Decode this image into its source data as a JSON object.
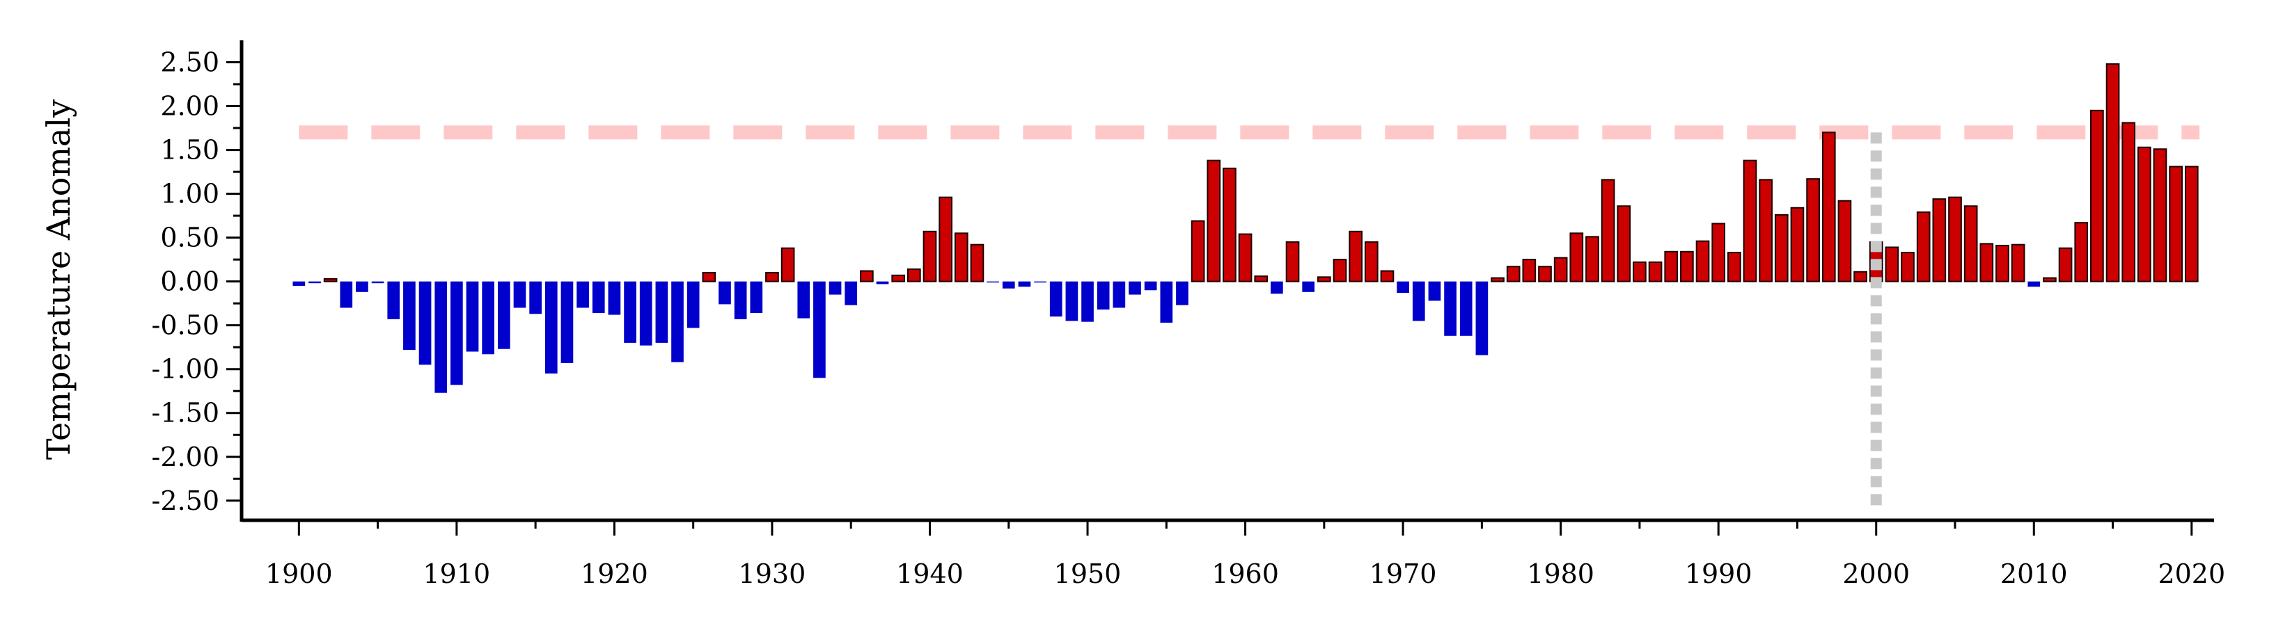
{
  "chart_data": {
    "type": "bar",
    "ylabel": "Temperature Anomaly",
    "xlim": [
      1899.5,
      2021.2
    ],
    "ylim": [
      -2.7,
      2.75
    ],
    "x_ticks": [
      "1900",
      "1910",
      "1920",
      "1930",
      "1940",
      "1950",
      "1960",
      "1970",
      "1980",
      "1990",
      "2000",
      "2010",
      "2020"
    ],
    "y_ticks": [
      "2.50",
      "2.00",
      "1.50",
      "1.00",
      "0.50",
      "0.00",
      "-0.50",
      "-1.00",
      "-1.50",
      "-2.00",
      "-2.50"
    ],
    "reference_line": {
      "y": 1.7,
      "color": "#ffc8c8",
      "style": "dashed"
    },
    "vertical_line": {
      "x": 2000,
      "color": "#c8c8c8",
      "style": "dotted"
    },
    "colors": {
      "positive": "#cc0000",
      "negative": "#0000cc"
    },
    "years": [
      1900,
      1901,
      1902,
      1903,
      1904,
      1905,
      1906,
      1907,
      1908,
      1909,
      1910,
      1911,
      1912,
      1913,
      1914,
      1915,
      1916,
      1917,
      1918,
      1919,
      1920,
      1921,
      1922,
      1923,
      1924,
      1925,
      1926,
      1927,
      1928,
      1929,
      1930,
      1931,
      1932,
      1933,
      1934,
      1935,
      1936,
      1937,
      1938,
      1939,
      1940,
      1941,
      1942,
      1943,
      1944,
      1945,
      1946,
      1947,
      1948,
      1949,
      1950,
      1951,
      1952,
      1953,
      1954,
      1955,
      1956,
      1957,
      1958,
      1959,
      1960,
      1961,
      1962,
      1963,
      1964,
      1965,
      1966,
      1967,
      1968,
      1969,
      1970,
      1971,
      1972,
      1973,
      1974,
      1975,
      1976,
      1977,
      1978,
      1979,
      1980,
      1981,
      1982,
      1983,
      1984,
      1985,
      1986,
      1987,
      1988,
      1989,
      1990,
      1991,
      1992,
      1993,
      1994,
      1995,
      1996,
      1997,
      1998,
      1999,
      2000,
      2001,
      2002,
      2003,
      2004,
      2005,
      2006,
      2007,
      2008,
      2009,
      2010,
      2011,
      2012,
      2013,
      2014,
      2015,
      2016,
      2017,
      2018,
      2019,
      2020
    ],
    "values": [
      -0.05,
      -0.02,
      0.03,
      -0.3,
      -0.12,
      -0.02,
      -0.43,
      -0.78,
      -0.95,
      -1.27,
      -1.18,
      -0.8,
      -0.83,
      -0.77,
      -0.3,
      -0.37,
      -1.05,
      -0.93,
      -0.3,
      -0.36,
      -0.38,
      -0.7,
      -0.73,
      -0.7,
      -0.92,
      -0.53,
      0.1,
      -0.26,
      -0.43,
      -0.36,
      0.1,
      0.38,
      -0.42,
      -1.1,
      -0.15,
      -0.27,
      0.12,
      -0.03,
      0.07,
      0.14,
      0.57,
      0.96,
      0.55,
      0.42,
      -0.01,
      -0.08,
      -0.06,
      -0.01,
      -0.4,
      -0.45,
      -0.46,
      -0.32,
      -0.3,
      -0.15,
      -0.1,
      -0.47,
      -0.27,
      0.69,
      1.38,
      1.29,
      0.54,
      0.06,
      -0.14,
      0.45,
      -0.12,
      0.05,
      0.25,
      0.57,
      0.45,
      0.12,
      -0.13,
      -0.45,
      -0.22,
      -0.62,
      -0.62,
      -0.84,
      0.04,
      0.17,
      0.25,
      0.17,
      0.27,
      0.55,
      0.51,
      1.16,
      0.86,
      0.22,
      0.22,
      0.34,
      0.34,
      0.46,
      0.66,
      0.33,
      1.38,
      1.16,
      0.76,
      0.84,
      1.17,
      1.7,
      0.92,
      0.11,
      0.45,
      0.39,
      0.33,
      0.79,
      0.94,
      0.96,
      0.86,
      0.43,
      0.41,
      0.42,
      -0.06,
      0.04,
      0.38,
      0.67,
      1.95,
      2.48,
      1.81,
      1.53,
      1.51,
      1.31,
      1.31
    ]
  }
}
